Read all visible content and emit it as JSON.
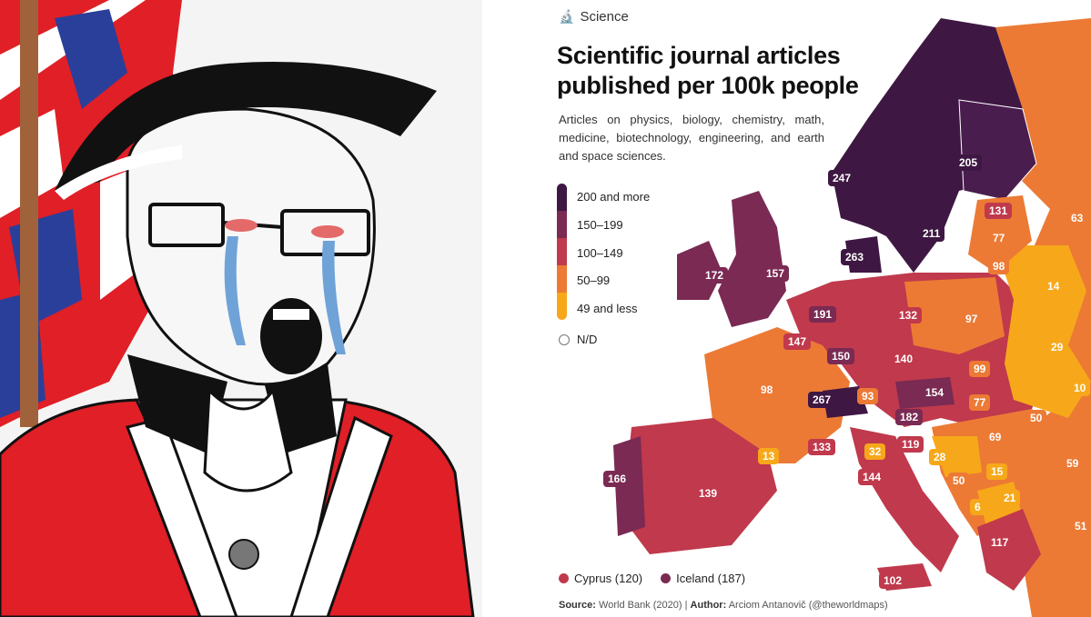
{
  "header": {
    "category": "Science",
    "category_icon": "microscope-icon",
    "title": "Scientific journal articles published per 100k people",
    "subtitle": "Articles on physics, biology, chemistry, math, medicine, biotechnology, engineering, and earth and space sciences."
  },
  "legend": [
    {
      "label": "200 and more",
      "color": "#3e1743"
    },
    {
      "label": "150–199",
      "color": "#7a2a53"
    },
    {
      "label": "100–149",
      "color": "#c0394c"
    },
    {
      "label": "50–99",
      "color": "#ec7a35"
    },
    {
      "label": "49 and less",
      "color": "#f7a81a"
    }
  ],
  "nd_label": "N/D",
  "countries": [
    {
      "value": "247",
      "bg": "#3e1743"
    },
    {
      "value": "205",
      "bg": "#3e1743"
    },
    {
      "value": "211",
      "bg": "#3e1743"
    },
    {
      "value": "263",
      "bg": "#3e1743"
    },
    {
      "value": "131",
      "bg": "#c0394c"
    },
    {
      "value": "63",
      "bg": "#ec7a35"
    },
    {
      "value": "77",
      "bg": "#ec7a35"
    },
    {
      "value": "98",
      "bg": "#ec7a35"
    },
    {
      "value": "14",
      "bg": "#f7a81a"
    },
    {
      "value": "172",
      "bg": "#7a2a53"
    },
    {
      "value": "157",
      "bg": "#7a2a53"
    },
    {
      "value": "191",
      "bg": "#7a2a53"
    },
    {
      "value": "132",
      "bg": "#c0394c"
    },
    {
      "value": "97",
      "bg": "#ec7a35"
    },
    {
      "value": "147",
      "bg": "#c0394c"
    },
    {
      "value": "150",
      "bg": "#7a2a53"
    },
    {
      "value": "140",
      "bg": "#c0394c"
    },
    {
      "value": "29",
      "bg": "#f7a81a"
    },
    {
      "value": "99",
      "bg": "#ec7a35"
    },
    {
      "value": "98",
      "bg": "#ec7a35"
    },
    {
      "value": "267",
      "bg": "#3e1743"
    },
    {
      "value": "93",
      "bg": "#ec7a35"
    },
    {
      "value": "154",
      "bg": "#7a2a53"
    },
    {
      "value": "10",
      "bg": "#f7a81a"
    },
    {
      "value": "182",
      "bg": "#7a2a53"
    },
    {
      "value": "77",
      "bg": "#ec7a35"
    },
    {
      "value": "50",
      "bg": "#ec7a35"
    },
    {
      "value": "69",
      "bg": "#ec7a35"
    },
    {
      "value": "119",
      "bg": "#c0394c"
    },
    {
      "value": "133",
      "bg": "#c0394c"
    },
    {
      "value": "32",
      "bg": "#f7a81a"
    },
    {
      "value": "28",
      "bg": "#f7a81a"
    },
    {
      "value": "13",
      "bg": "#f7a81a"
    },
    {
      "value": "59",
      "bg": "#ec7a35"
    },
    {
      "value": "166",
      "bg": "#7a2a53"
    },
    {
      "value": "144",
      "bg": "#c0394c"
    },
    {
      "value": "50",
      "bg": "#ec7a35"
    },
    {
      "value": "15",
      "bg": "#f7a81a"
    },
    {
      "value": "139",
      "bg": "#c0394c"
    },
    {
      "value": "6",
      "bg": "#f7a81a"
    },
    {
      "value": "21",
      "bg": "#f7a81a"
    },
    {
      "value": "51",
      "bg": "#ec7a35"
    },
    {
      "value": "117",
      "bg": "#c0394c"
    },
    {
      "value": "102",
      "bg": "#c0394c"
    }
  ],
  "extras": [
    {
      "label": "Cyprus (120)",
      "color": "#c0394c"
    },
    {
      "label": "Iceland (187)",
      "color": "#7a2a53"
    }
  ],
  "source": {
    "source_key": "Source:",
    "source_val": "World Bank (2020)",
    "sep": "|",
    "author_key": "Author:",
    "author_val": "Arciom Antanovič (@theworldmaps)"
  }
}
